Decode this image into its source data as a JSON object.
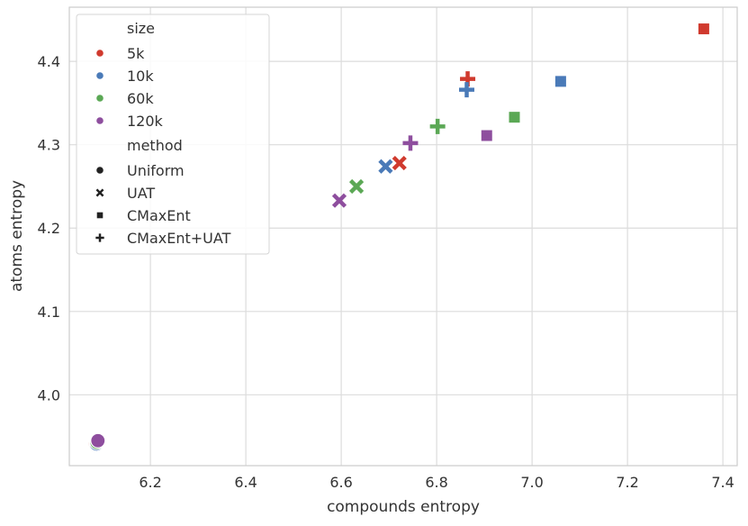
{
  "chart_data": {
    "type": "scatter",
    "title": "",
    "xlabel": "compounds entropy",
    "ylabel": "atoms entropy",
    "xlim": [
      6.03,
      7.43
    ],
    "ylim": [
      3.915,
      4.465
    ],
    "xticks": [
      "6.2",
      "6.4",
      "6.6",
      "6.8",
      "7.0",
      "7.2",
      "7.4"
    ],
    "xtick_values": [
      6.2,
      6.4,
      6.6,
      6.8,
      7.0,
      7.2,
      7.4
    ],
    "yticks": [
      "4.0",
      "4.1",
      "4.2",
      "4.3",
      "4.4"
    ],
    "ytick_values": [
      4.0,
      4.1,
      4.2,
      4.3,
      4.4
    ],
    "grid": true,
    "legend_position": "top-left",
    "legend": {
      "hue_title": "size",
      "style_title": "method",
      "sizes": [
        {
          "label": "5k",
          "color": "#d03a2e"
        },
        {
          "label": "10k",
          "color": "#4a7ab8"
        },
        {
          "label": "60k",
          "color": "#5ba855"
        },
        {
          "label": "120k",
          "color": "#8e4e9e"
        }
      ],
      "methods": [
        {
          "label": "Uniform",
          "marker": "circle"
        },
        {
          "label": "UAT",
          "marker": "x"
        },
        {
          "label": "CMaxEnt",
          "marker": "square"
        },
        {
          "label": "CMaxEnt+UAT",
          "marker": "plus"
        }
      ]
    },
    "points": [
      {
        "size": "5k",
        "method": "Uniform",
        "x": 6.085,
        "y": 3.941
      },
      {
        "size": "10k",
        "method": "Uniform",
        "x": 6.087,
        "y": 3.941
      },
      {
        "size": "60k",
        "method": "Uniform",
        "x": 6.088,
        "y": 3.943
      },
      {
        "size": "120k",
        "method": "Uniform",
        "x": 6.09,
        "y": 3.945
      },
      {
        "size": "5k",
        "method": "UAT",
        "x": 6.722,
        "y": 4.278
      },
      {
        "size": "10k",
        "method": "UAT",
        "x": 6.693,
        "y": 4.274
      },
      {
        "size": "60k",
        "method": "UAT",
        "x": 6.632,
        "y": 4.25
      },
      {
        "size": "120k",
        "method": "UAT",
        "x": 6.596,
        "y": 4.233
      },
      {
        "size": "5k",
        "method": "CMaxEnt",
        "x": 7.36,
        "y": 4.439
      },
      {
        "size": "10k",
        "method": "CMaxEnt",
        "x": 7.06,
        "y": 4.376
      },
      {
        "size": "60k",
        "method": "CMaxEnt",
        "x": 6.963,
        "y": 4.333
      },
      {
        "size": "120k",
        "method": "CMaxEnt",
        "x": 6.905,
        "y": 4.311
      },
      {
        "size": "5k",
        "method": "CMaxEnt+UAT",
        "x": 6.865,
        "y": 4.379
      },
      {
        "size": "10k",
        "method": "CMaxEnt+UAT",
        "x": 6.863,
        "y": 4.366
      },
      {
        "size": "60k",
        "method": "CMaxEnt+UAT",
        "x": 6.802,
        "y": 4.322
      },
      {
        "size": "120k",
        "method": "CMaxEnt+UAT",
        "x": 6.745,
        "y": 4.302
      }
    ]
  }
}
